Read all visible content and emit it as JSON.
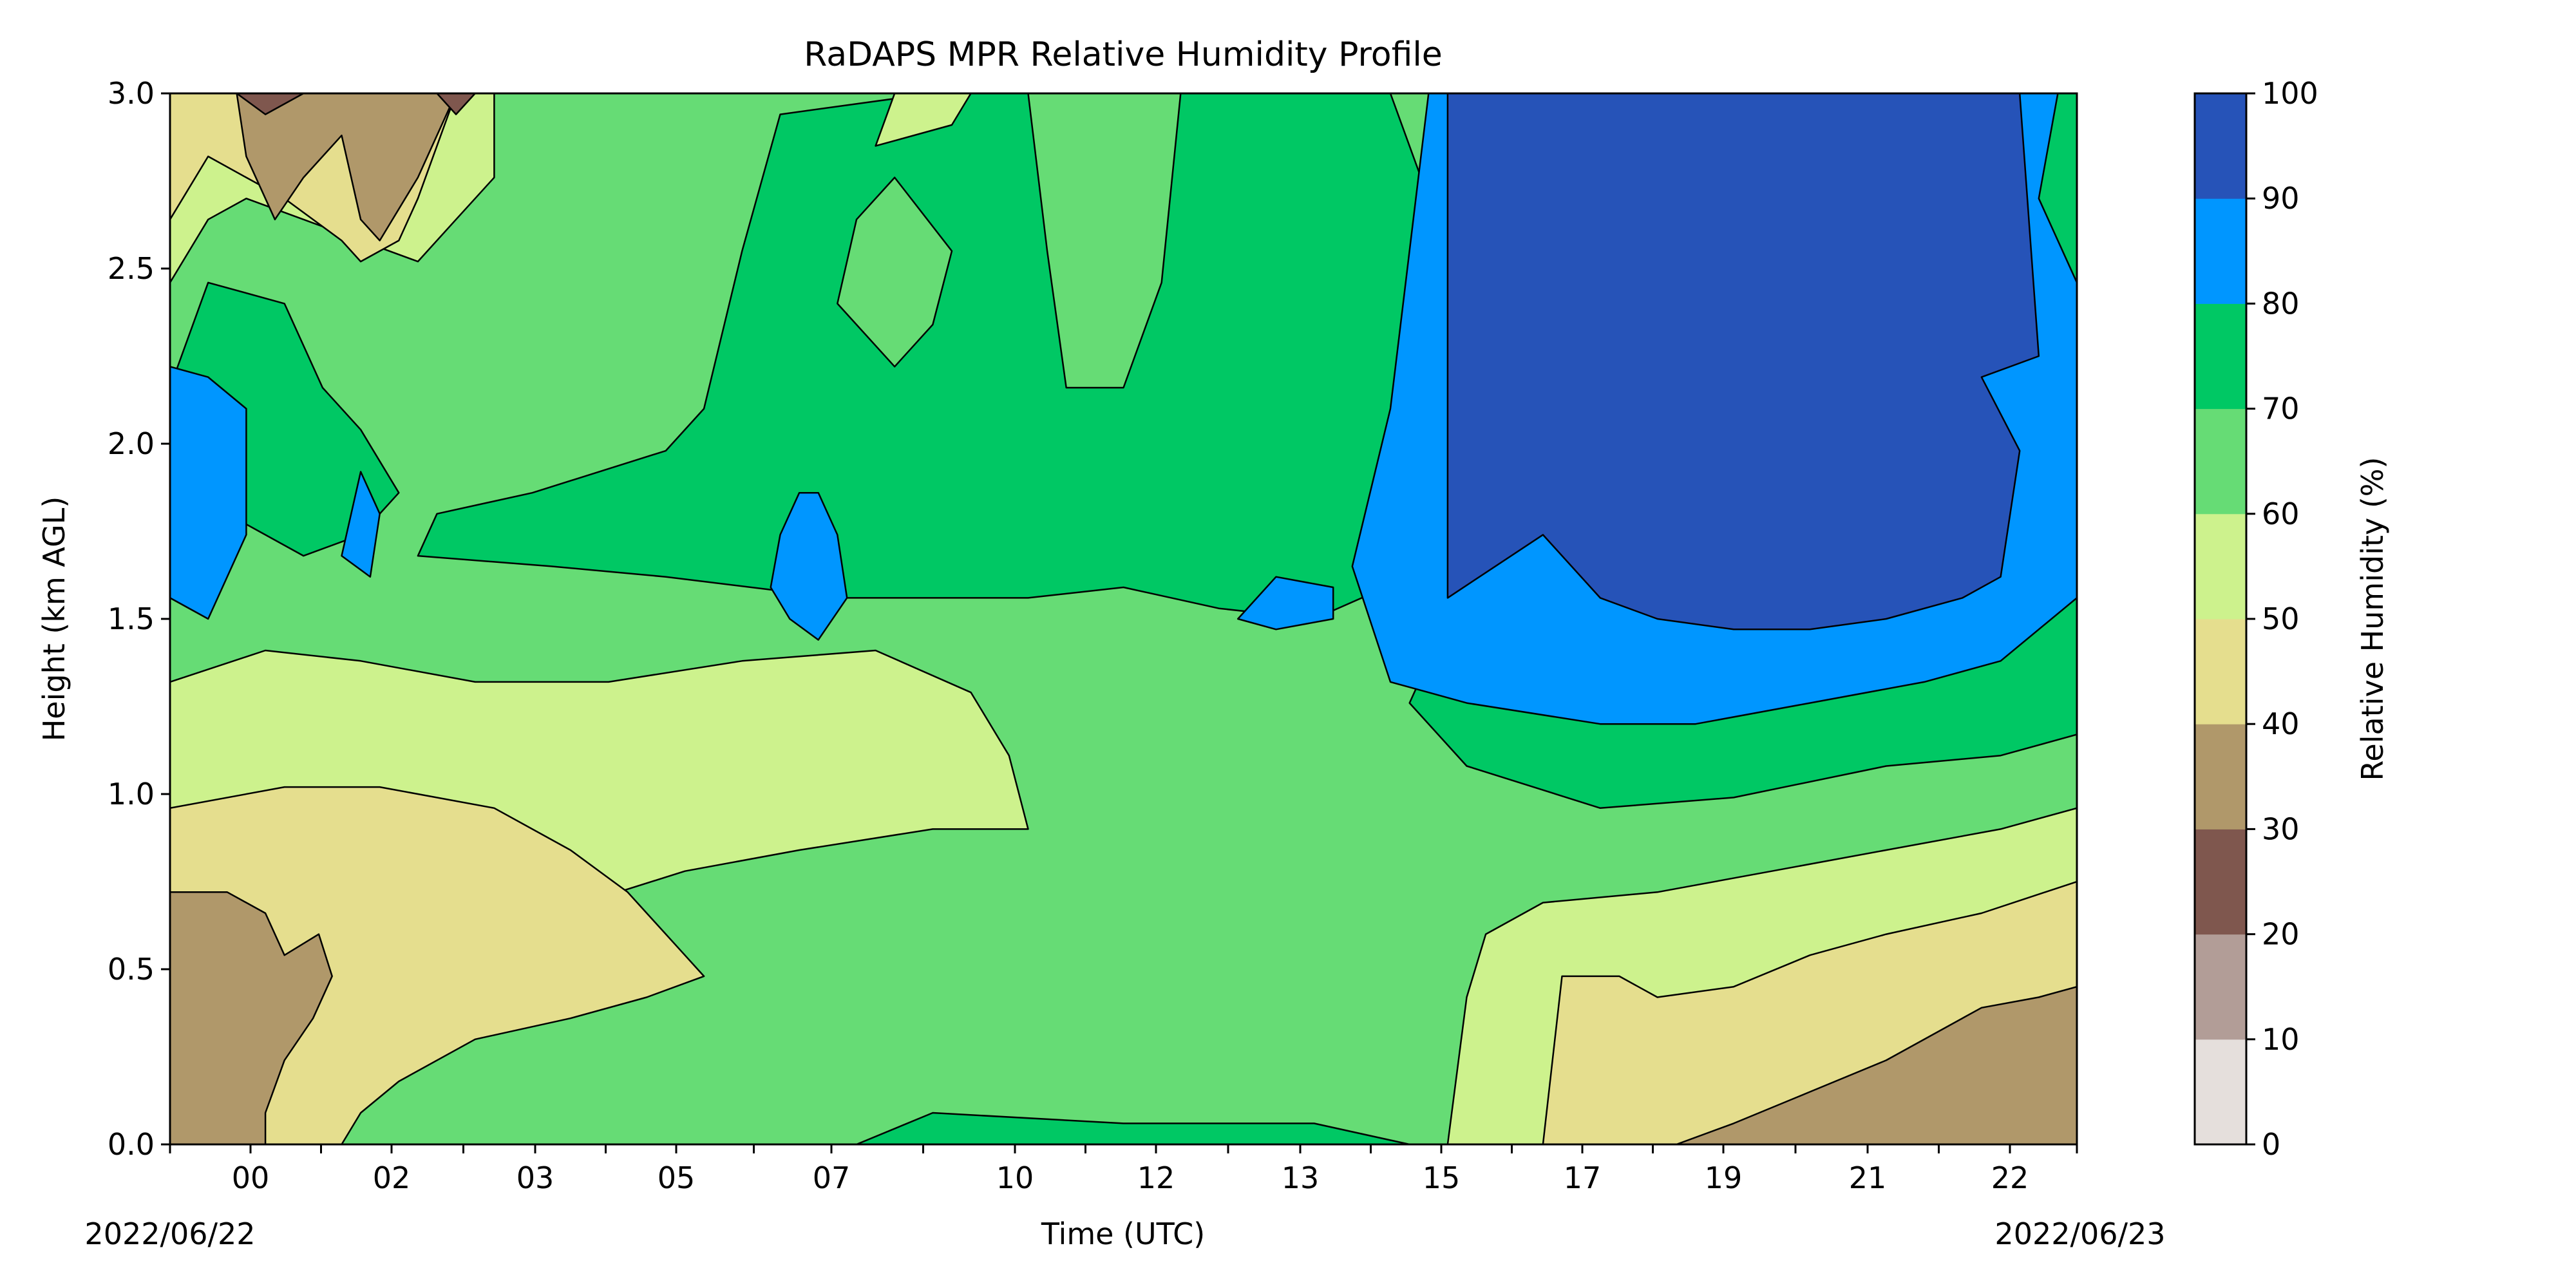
{
  "chart_data": {
    "type": "heatmap",
    "subtype": "filled-contour",
    "title": "RaDAPS MPR Relative Humidity Profile",
    "xlabel": "Time (UTC)",
    "ylabel": "Height (km AGL)",
    "start_date_label": "2022/06/22",
    "end_date_label": "2022/06/23",
    "x_tick_labels": [
      "00",
      "02",
      "03",
      "05",
      "07",
      "10",
      "12",
      "13",
      "15",
      "17",
      "19",
      "21",
      "22"
    ],
    "y_ticks": [
      0.0,
      0.5,
      1.0,
      1.5,
      2.0,
      2.5,
      3.0
    ],
    "y_tick_labels": [
      "0.0",
      "0.5",
      "1.0",
      "1.5",
      "2.0",
      "2.5",
      "3.0"
    ],
    "ylim": [
      0.0,
      3.0
    ],
    "colorbar": {
      "label": "Relative Humidity (%)",
      "levels": [
        0,
        10,
        20,
        30,
        40,
        50,
        60,
        70,
        80,
        90,
        100
      ],
      "level_labels": [
        "0",
        "10",
        "20",
        "30",
        "40",
        "50",
        "60",
        "70",
        "80",
        "90",
        "100"
      ],
      "colors": [
        "#e5dfdc",
        "#b29d97",
        "#7f574e",
        "#b0986a",
        "#e5de8e",
        "#cdf28d",
        "#66dc75",
        "#00c864",
        "#0096ff",
        "#2653b8"
      ]
    }
  }
}
